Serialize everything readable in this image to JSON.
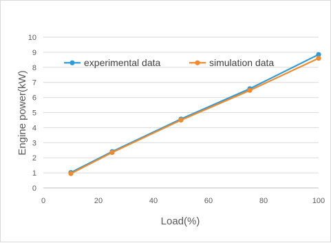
{
  "chart_data": {
    "type": "line",
    "xlabel": "Load(%)",
    "ylabel": "Engine power(kW)",
    "xlim": [
      0,
      100
    ],
    "ylim": [
      0,
      10
    ],
    "xticks": [
      0,
      20,
      40,
      60,
      80,
      100
    ],
    "yticks": [
      0,
      1,
      2,
      3,
      4,
      5,
      6,
      7,
      8,
      9,
      10
    ],
    "grid": "horizontal",
    "legend_position": "top-left",
    "series": [
      {
        "name": "experimental data",
        "color": "#2E9BD6",
        "marker": "circle",
        "x": [
          10,
          25,
          50,
          75,
          100
        ],
        "y": [
          1.02,
          2.41,
          4.57,
          6.58,
          8.85
        ]
      },
      {
        "name": "simulation data",
        "color": "#F08A2C",
        "marker": "circle",
        "x": [
          10,
          25,
          50,
          75,
          100
        ],
        "y": [
          0.95,
          2.35,
          4.5,
          6.47,
          8.6
        ]
      }
    ]
  }
}
